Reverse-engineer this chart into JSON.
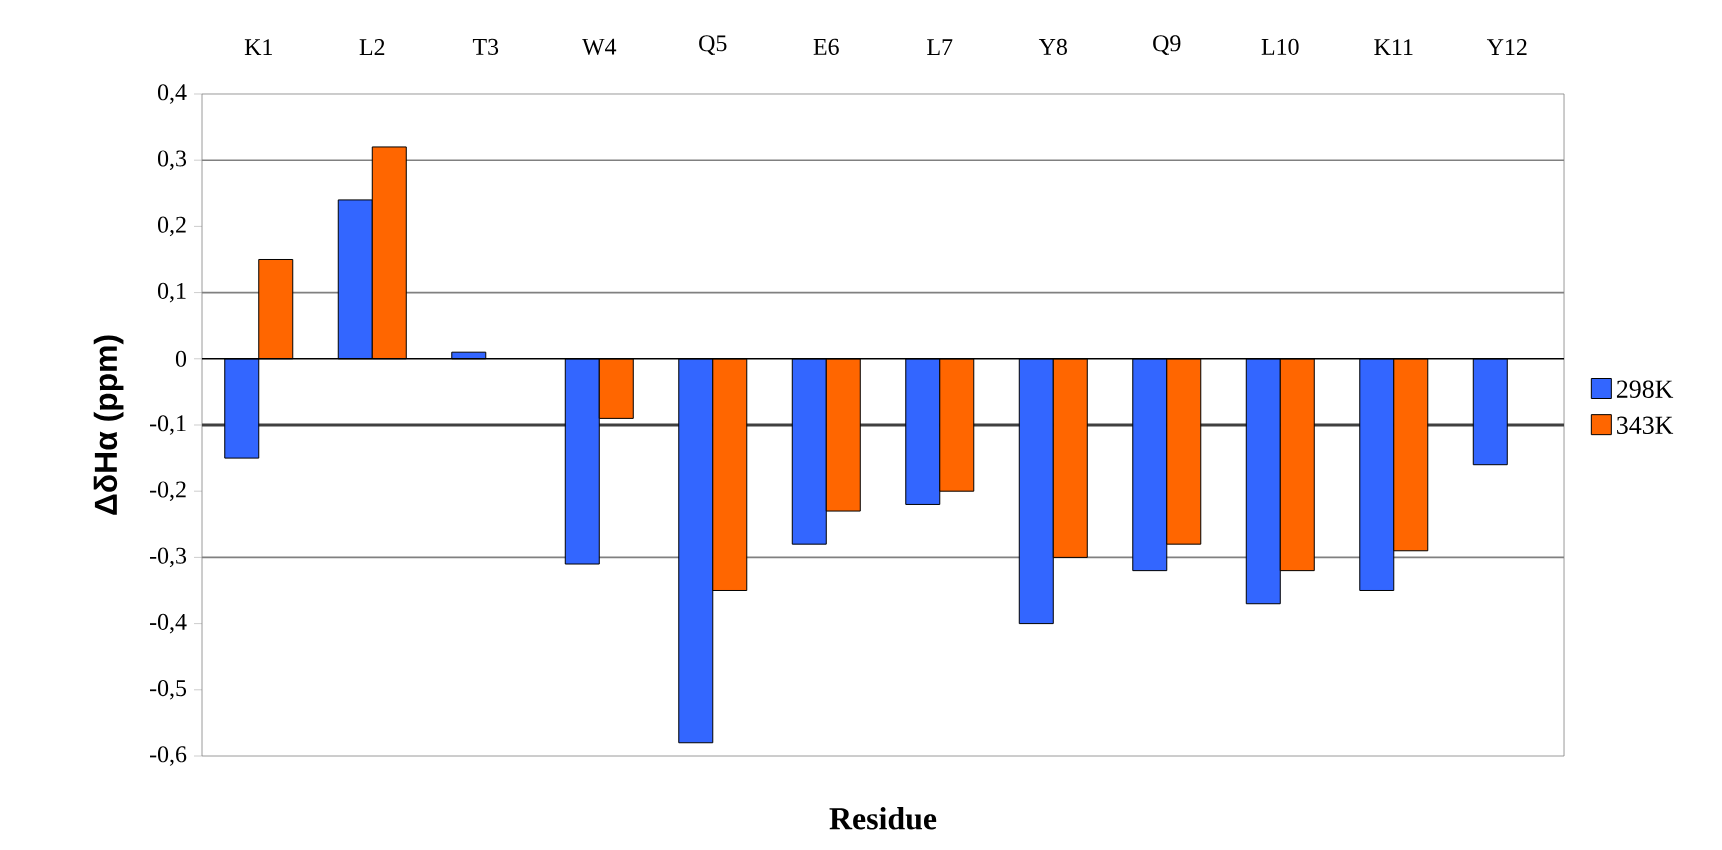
{
  "chart_data": {
    "type": "bar",
    "xlabel": "Residue",
    "ylabel": "ΔδHα (ppm)",
    "categories": [
      "K1",
      "L2",
      "T3",
      "W4",
      "Q5",
      "E6",
      "L7",
      "Y8",
      "Q9",
      "L10",
      "K11",
      "Y12"
    ],
    "series": [
      {
        "name": "298K",
        "color": "#3366ff",
        "values": [
          -0.15,
          0.24,
          0.01,
          -0.31,
          -0.58,
          -0.28,
          -0.22,
          -0.4,
          -0.32,
          -0.37,
          -0.35,
          -0.16
        ]
      },
      {
        "name": "343K",
        "color": "#ff6600",
        "values": [
          0.15,
          0.32,
          null,
          -0.09,
          -0.35,
          -0.23,
          -0.2,
          -0.3,
          -0.28,
          -0.32,
          -0.29,
          null
        ]
      }
    ],
    "ylim": [
      -0.6,
      0.4
    ],
    "yticks": [
      {
        "value": 0.4,
        "label": "0,4"
      },
      {
        "value": 0.3,
        "label": "0,3"
      },
      {
        "value": 0.2,
        "label": "0,2"
      },
      {
        "value": 0.1,
        "label": "0,1"
      },
      0,
      {
        "value": -0.1,
        "label": "-0,1"
      },
      {
        "value": -0.2,
        "label": "-0,2"
      },
      {
        "value": -0.3,
        "label": "-0,3"
      },
      {
        "value": -0.4,
        "label": "-0,4"
      },
      {
        "value": -0.5,
        "label": "-0,5"
      },
      {
        "value": -0.6,
        "label": "-0,6"
      }
    ],
    "ref_lines": [
      {
        "axis": "y",
        "value": 0.3,
        "color": "#808080"
      },
      {
        "axis": "y",
        "value": 0.1,
        "color": "#808080"
      },
      {
        "axis": "y",
        "value": -0.1,
        "color": "#404040"
      },
      {
        "axis": "y",
        "value": -0.3,
        "color": "#808080"
      }
    ],
    "grid": false,
    "legend": "right"
  }
}
